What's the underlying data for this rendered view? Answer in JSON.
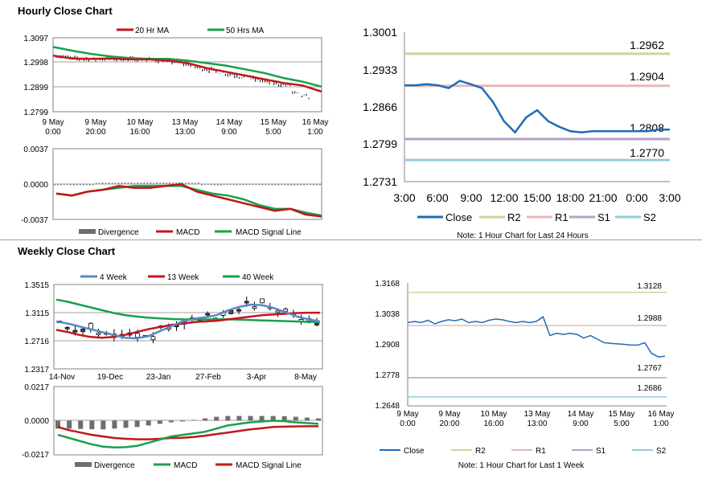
{
  "sections": {
    "hourly_title": "Hourly Close Chart",
    "weekly_title": "Weekly Close Chart"
  },
  "colors": {
    "red": "#c0171c",
    "green": "#18a14b",
    "blue_ma": "#5b87c5",
    "close_blue": "#1f6cb5",
    "r2": "#c7d89a",
    "r1": "#e6b8b7",
    "s1": "#b3a2c7",
    "s2": "#92cddc",
    "divergence": "#6e6e6e"
  },
  "chart_data": [
    {
      "id": "hourly_price",
      "type": "candlestick",
      "legend": [
        "20 Hr MA",
        "50 Hrs MA"
      ],
      "y_ticks": [
        "1.3097",
        "1.2998",
        "1.2899",
        "1.2799"
      ],
      "ylim": [
        1.2799,
        1.3097
      ],
      "x_ticks": [
        [
          "9 May",
          "0:00"
        ],
        [
          "9 May",
          "20:00"
        ],
        [
          "10 May",
          "16:00"
        ],
        [
          "13 May",
          "13:00"
        ],
        [
          "14 May",
          "9:00"
        ],
        [
          "15 May",
          "5:00"
        ],
        [
          "16 May",
          "1:00"
        ]
      ],
      "ma20": [
        1.3025,
        1.3013,
        1.3012,
        1.3013,
        1.301,
        1.301,
        1.3005,
        1.2995,
        1.2975,
        1.296,
        1.2945,
        1.293,
        1.2915,
        1.2905,
        1.288
      ],
      "ma50": [
        1.306,
        1.3045,
        1.3032,
        1.3022,
        1.3015,
        1.3012,
        1.3012,
        1.3005,
        1.2995,
        1.2985,
        1.297,
        1.2955,
        1.2935,
        1.292,
        1.29
      ]
    },
    {
      "id": "hourly_macd",
      "type": "macd",
      "legend": [
        "Divergence",
        "MACD",
        "MACD Signal Line"
      ],
      "y_ticks": [
        "0.0037",
        "0.0000",
        "-0.0037"
      ],
      "ylim": [
        -0.0037,
        0.0037
      ],
      "macd": [
        -0.001,
        -0.0012,
        -0.0008,
        -0.0006,
        -0.0002,
        -0.0004,
        -0.0004,
        -0.0002,
        0.0,
        -0.0008,
        -0.0012,
        -0.0016,
        -0.002,
        -0.0024,
        -0.0028,
        -0.0026,
        -0.0032,
        -0.0034
      ],
      "signal": [
        -0.001,
        -0.0012,
        -0.0008,
        -0.0006,
        -0.0004,
        -0.0002,
        -0.0002,
        -0.0002,
        -0.0002,
        -0.0006,
        -0.001,
        -0.0012,
        -0.0016,
        -0.0022,
        -0.0026,
        -0.0026,
        -0.003,
        -0.0033
      ]
    },
    {
      "id": "hourly_close_24h",
      "type": "line",
      "y_ticks": [
        "1.3001",
        "1.2933",
        "1.2866",
        "1.2799",
        "1.2731"
      ],
      "ylim": [
        1.2731,
        1.3001
      ],
      "x_ticks": [
        "3:00",
        "6:00",
        "9:00",
        "12:00",
        "15:00",
        "18:00",
        "21:00",
        "0:00",
        "3:00"
      ],
      "close": [
        1.2905,
        1.2905,
        1.2907,
        1.2905,
        1.29,
        1.2913,
        1.2907,
        1.29,
        1.2875,
        1.284,
        1.282,
        1.2847,
        1.286,
        1.284,
        1.283,
        1.2822,
        1.282,
        1.2822,
        1.2822,
        1.2822,
        1.2822,
        1.2822,
        1.2822,
        1.2825,
        1.2825
      ],
      "levels": {
        "R2": 1.2962,
        "R1": 1.2904,
        "S1": 1.2808,
        "S2": 1.277
      },
      "level_labels": {
        "R2": "1.2962",
        "R1": "1.2904",
        "S1": "1.2808",
        "S2": "1.2770"
      },
      "legend": [
        "Close",
        "R2",
        "R1",
        "S1",
        "S2"
      ],
      "note": "Note: 1 Hour Chart for Last 24 Hours"
    },
    {
      "id": "weekly_price",
      "type": "candlestick",
      "legend": [
        "4 Week",
        "13 Week",
        "40 Week"
      ],
      "y_ticks": [
        "1.3515",
        "1.3115",
        "1.2716",
        "1.2317"
      ],
      "ylim": [
        1.2317,
        1.3515
      ],
      "x_ticks": [
        "14-Nov",
        "19-Dec",
        "23-Jan",
        "27-Feb",
        "3-Apr",
        "8-May"
      ],
      "ma4": [
        1.299,
        1.296,
        1.292,
        1.288,
        1.284,
        1.28,
        1.276,
        1.275,
        1.278,
        1.285,
        1.292,
        1.299,
        1.303,
        1.305,
        1.308,
        1.315,
        1.32,
        1.323,
        1.322,
        1.318,
        1.312,
        1.306,
        1.302,
        1.299
      ],
      "ma13": [
        1.287,
        1.284,
        1.28,
        1.277,
        1.276,
        1.277,
        1.28,
        1.284,
        1.288,
        1.291,
        1.294,
        1.296,
        1.298,
        1.299,
        1.3,
        1.302,
        1.304,
        1.306,
        1.308,
        1.309,
        1.31,
        1.311,
        1.3115,
        1.3115
      ],
      "ma40": [
        1.33,
        1.327,
        1.323,
        1.319,
        1.315,
        1.311,
        1.308,
        1.306,
        1.3045,
        1.3035,
        1.3025,
        1.302,
        1.302,
        1.302,
        1.302,
        1.302,
        1.3015,
        1.301,
        1.3005,
        1.3,
        1.2995,
        1.299,
        1.2985,
        1.298
      ]
    },
    {
      "id": "weekly_macd",
      "type": "macd",
      "legend": [
        "Divergence",
        "MACD",
        "MACD Signal Line"
      ],
      "y_ticks": [
        "0.0217",
        "0.0000",
        "-0.0217"
      ],
      "ylim": [
        -0.0217,
        0.0217
      ],
      "divergence": [
        -0.005,
        -0.005,
        -0.0052,
        -0.0054,
        -0.0055,
        -0.005,
        -0.0045,
        -0.004,
        -0.003,
        -0.002,
        -0.001,
        -0.0005,
        0.0005,
        0.0015,
        0.0025,
        0.003,
        0.003,
        0.003,
        0.003,
        0.003,
        0.0028,
        0.0025,
        0.002,
        0.0015
      ],
      "macd": [
        -0.009,
        -0.011,
        -0.013,
        -0.015,
        -0.0165,
        -0.017,
        -0.0168,
        -0.016,
        -0.014,
        -0.012,
        -0.01,
        -0.009,
        -0.008,
        -0.007,
        -0.005,
        -0.003,
        -0.002,
        -0.001,
        -0.0005,
        0.0,
        -0.0003,
        -0.001,
        -0.0015,
        -0.002
      ],
      "signal": [
        -0.004,
        -0.006,
        -0.0075,
        -0.009,
        -0.01,
        -0.011,
        -0.0115,
        -0.0118,
        -0.0118,
        -0.0115,
        -0.011,
        -0.0108,
        -0.0103,
        -0.0095,
        -0.0085,
        -0.0075,
        -0.0065,
        -0.0055,
        -0.0048,
        -0.004,
        -0.0038,
        -0.0036,
        -0.0035,
        -0.0035
      ]
    },
    {
      "id": "weekly_close_1w",
      "type": "line",
      "y_ticks": [
        "1.3168",
        "1.3038",
        "1.2908",
        "1.2778",
        "1.2648"
      ],
      "ylim": [
        1.2648,
        1.3168
      ],
      "x_ticks": [
        [
          "9 May",
          "0:00"
        ],
        [
          "9 May",
          "20:00"
        ],
        [
          "10 May",
          "16:00"
        ],
        [
          "13 May",
          "13:00"
        ],
        [
          "14 May",
          "9:00"
        ],
        [
          "15 May",
          "5:00"
        ],
        [
          "16 May",
          "1:00"
        ]
      ],
      "close": [
        1.3,
        1.3005,
        1.3,
        1.301,
        1.2995,
        1.3005,
        1.3012,
        1.3008,
        1.3015,
        1.3,
        1.3005,
        1.3,
        1.301,
        1.3015,
        1.3012,
        1.3005,
        1.3,
        1.3005,
        1.3,
        1.3005,
        1.3025,
        1.2945,
        1.2955,
        1.295,
        1.2955,
        1.295,
        1.2935,
        1.2945,
        1.293,
        1.2915,
        1.2912,
        1.291,
        1.2908,
        1.2905,
        1.2905,
        1.2915,
        1.287,
        1.2855,
        1.2858
      ],
      "levels": {
        "R2": 1.3128,
        "R1": 1.2988,
        "S1": 1.2767,
        "S2": 1.2686
      },
      "level_labels": {
        "R2": "1.3128",
        "R1": "1.2988",
        "S1": "1.2767",
        "S2": "1.2686"
      },
      "legend": [
        "Close",
        "R2",
        "R1",
        "S1",
        "S2"
      ],
      "note": "Note: 1 Hour Chart for Last 1 Week"
    }
  ]
}
